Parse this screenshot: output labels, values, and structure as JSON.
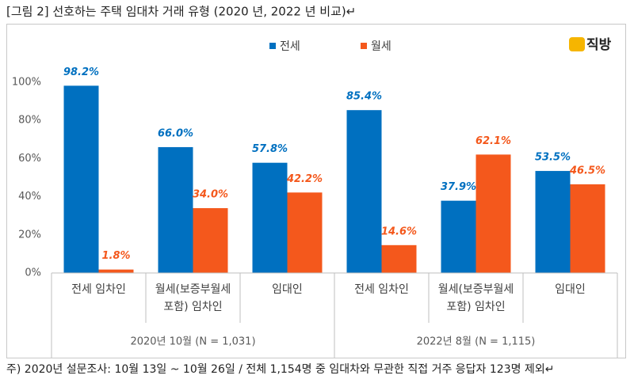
{
  "chart_data": {
    "type": "bar",
    "title": "[그림 2] 선호하는 주택 임대차 거래 유형 (2020 년, 2022 년 비교)↵",
    "logo": "직방",
    "categories": [
      "전세 임차인",
      "월세(보증부월세 포함) 임차인",
      "임대인",
      "전세 임차인",
      "월세(보증부월세 포함) 임차인",
      "임대인"
    ],
    "groups": [
      "2020년 10월 (N = 1,031)",
      "2022년 8월 (N = 1,115)"
    ],
    "series": [
      {
        "name": "전세",
        "color": "#0070c0",
        "values": [
          98.2,
          66.0,
          57.8,
          85.4,
          37.9,
          53.5
        ],
        "value_labels": [
          "98.2%",
          "66.0%",
          "57.8%",
          "85.4%",
          "37.9%",
          "53.5%"
        ]
      },
      {
        "name": "월세",
        "color": "#f4581c",
        "values": [
          1.8,
          34.0,
          42.2,
          14.6,
          62.1,
          46.5
        ],
        "value_labels": [
          "1.8%",
          "34.0%",
          "42.2%",
          "14.6%",
          "62.1%",
          "46.5%"
        ]
      }
    ],
    "ylim": [
      0,
      100
    ],
    "yticks": [
      {
        "value": 0,
        "label": "0%"
      },
      {
        "value": 20,
        "label": "20%"
      },
      {
        "value": 40,
        "label": "40%"
      },
      {
        "value": 60,
        "label": "60%"
      },
      {
        "value": 80,
        "label": "80%"
      },
      {
        "value": 100,
        "label": "100%"
      }
    ],
    "grid": false,
    "footnote": "주) 2020년 설문조사: 10월 13일 ~ 10월 26일 / 전체 1,154명 중 임대차와 무관한 직접 거주 응답자 123명 제외↵"
  }
}
